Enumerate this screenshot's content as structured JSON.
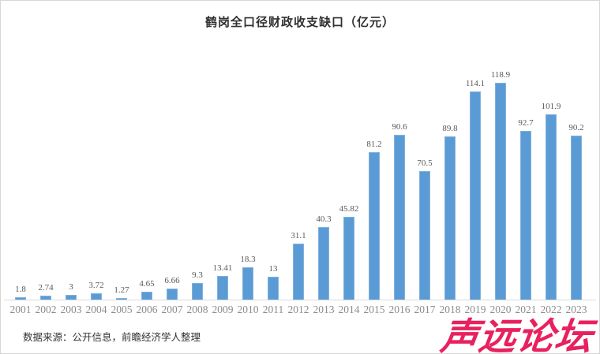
{
  "header": {
    "title": "鹤岗全口径财政收支缺口（亿元）"
  },
  "footer": {
    "source_note": "数据来源：公开信息，前瞻经济学人整理"
  },
  "watermark": {
    "text": "声远论坛",
    "color": "#e8215f"
  },
  "colors": {
    "bar_fill": "#5b9bd5",
    "bar_edge": "#7fb2de",
    "axis_line": "#d9d9d9",
    "data_label": "#595959",
    "tick_label": "#8c8c8c",
    "title": "#303030",
    "border": "#d6d6d6"
  },
  "chart_data": {
    "type": "bar",
    "title": "鹤岗全口径财政收支缺口（亿元）",
    "categories": [
      "2001",
      "2002",
      "2003",
      "2004",
      "2005",
      "2006",
      "2007",
      "2008",
      "2009",
      "2010",
      "2011",
      "2012",
      "2013",
      "2014",
      "2015",
      "2016",
      "2017",
      "2018",
      "2019",
      "2020",
      "2021",
      "2022",
      "2023"
    ],
    "values": [
      1.8,
      2.74,
      3,
      3.72,
      1.27,
      4.65,
      6.66,
      9.3,
      13.41,
      18.3,
      13,
      31.1,
      40.3,
      45.82,
      81.2,
      90.6,
      70.5,
      89.8,
      114.1,
      118.9,
      92.7,
      101.9,
      90.2
    ],
    "xlabel": "",
    "ylabel": "",
    "ylim": [
      0,
      120
    ],
    "grid": false,
    "legend": false,
    "data_labels": true
  }
}
